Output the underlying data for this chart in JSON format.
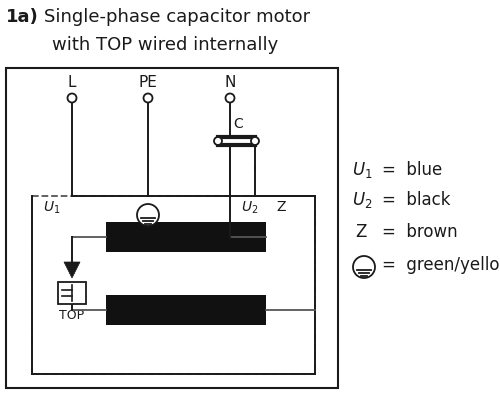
{
  "title_bold": "1a)",
  "title_text": " Single-phase capacitor motor",
  "subtitle": "with TOP wired internally",
  "bg_color": "#ffffff",
  "line_color": "#1a1a1a",
  "coil_color": "#111111",
  "wire_color": "#555555"
}
